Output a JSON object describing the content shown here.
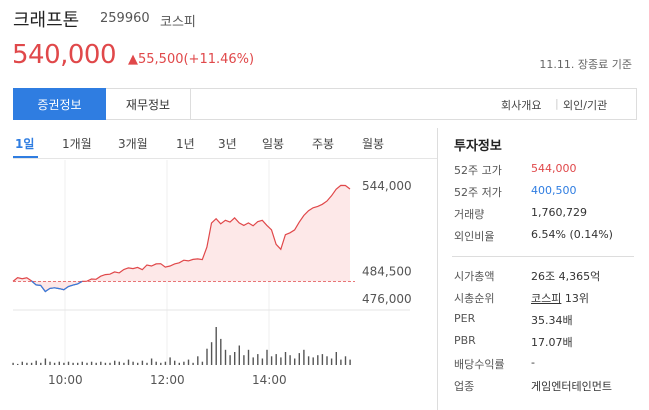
{
  "header": {
    "name": "크래프톤",
    "code": "259960",
    "market": "코스피",
    "price": "540,000",
    "change": "▲55,500(+11.46%)",
    "as_of": "11.11. 장종료 기준"
  },
  "tabs": {
    "stock_info": "증권정보",
    "financial_info": "재무정보",
    "company": "회사개요",
    "sep": "|",
    "foreign": "외인/기관"
  },
  "periods": [
    "1일",
    "1개월",
    "3개월",
    "1년",
    "3년",
    "일봉",
    "주봉",
    "월봉"
  ],
  "chart_data": {
    "type": "line",
    "title": "",
    "x_ticks": [
      "10:00",
      "12:00",
      "14:00"
    ],
    "y_labels": [
      "544,000",
      "484,500",
      "476,000"
    ],
    "y_range": [
      476000,
      544000
    ],
    "reference_price": 484500,
    "accent": "#e0484a",
    "fill": "#fde8e8",
    "series": [
      {
        "values": [
          484500,
          486800,
          486200,
          486700,
          484800,
          482300,
          482000,
          478200,
          480100,
          480500,
          480000,
          479300,
          481300,
          482200,
          482900,
          484500,
          484600,
          486000,
          485800,
          487700,
          488700,
          489000,
          490400,
          489800,
          491900,
          492900,
          492500,
          493200,
          491800,
          494700,
          494100,
          495400,
          495500,
          493400,
          494100,
          495400,
          496100,
          497700,
          497300,
          498200,
          498500,
          498100,
          505900,
          520900,
          523600,
          520400,
          522600,
          521500,
          524100,
          521000,
          519400,
          521000,
          519200,
          521700,
          522600,
          519400,
          516700,
          507600,
          504500,
          513600,
          514800,
          516600,
          521400,
          525600,
          528600,
          530400,
          531300,
          532600,
          534600,
          537900,
          542000,
          544400,
          544300,
          542100
        ]
      }
    ],
    "volume": [
      2,
      1,
      3,
      2,
      2,
      4,
      2,
      6,
      3,
      2,
      3,
      2,
      3,
      2,
      2,
      3,
      2,
      3,
      2,
      3,
      2,
      2,
      4,
      3,
      2,
      5,
      3,
      2,
      4,
      2,
      6,
      3,
      2,
      3,
      7,
      4,
      2,
      3,
      5,
      2,
      8,
      3,
      15,
      21,
      35,
      24,
      14,
      9,
      12,
      18,
      9,
      14,
      7,
      10,
      6,
      14,
      8,
      10,
      7,
      12,
      9,
      6,
      11,
      14,
      8,
      7,
      9,
      10,
      8,
      6,
      12,
      5,
      8,
      5
    ]
  },
  "investment": {
    "title": "투자정보",
    "rows": [
      {
        "label": "52주 고가",
        "value": "544,000"
      },
      {
        "label": "52주 저가",
        "value": "400,500"
      },
      {
        "label": "거래량",
        "value": "1,760,729"
      },
      {
        "label": "외인비율",
        "value": "6.54% (0.14%)"
      },
      {
        "label": "시가총액",
        "value": "26조 4,365억"
      },
      {
        "label": "시총순위",
        "value_link": "코스피",
        "value_rest": " 13위"
      },
      {
        "label": "PER",
        "value": "35.34배"
      },
      {
        "label": "PBR",
        "value": "17.07배"
      },
      {
        "label": "배당수익률",
        "value": "-"
      },
      {
        "label": "업종",
        "value": "게임엔터테인먼트"
      }
    ]
  }
}
